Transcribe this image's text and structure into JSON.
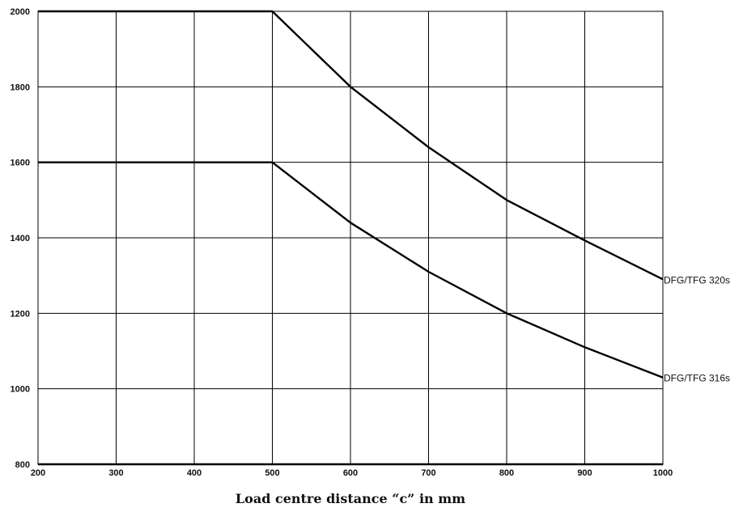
{
  "chart_data": {
    "type": "line",
    "title": "",
    "xlabel": "Load centre distance “c” in mm",
    "ylabel": "",
    "xlim": [
      200,
      1000
    ],
    "ylim": [
      800,
      2000
    ],
    "x_ticks": [
      200,
      300,
      400,
      500,
      600,
      700,
      800,
      900,
      1000
    ],
    "y_ticks": [
      800,
      1000,
      1200,
      1400,
      1600,
      1800,
      2000
    ],
    "x_tick_labels": [
      "200",
      "300",
      "400",
      "500",
      "600",
      "700",
      "800",
      "900",
      "1000"
    ],
    "y_tick_labels": [
      "800",
      "1000",
      "1200",
      "1400",
      "1600",
      "1800",
      "2000"
    ],
    "grid": true,
    "legend": "none; series labelled at line ends",
    "line_color": "#000000",
    "grid_color": "#000000",
    "series": [
      {
        "name": "DFG/TFG 320s",
        "x": [
          200,
          500,
          600,
          700,
          800,
          900,
          1000
        ],
        "values": [
          2000,
          2000,
          1800,
          1640,
          1500,
          1393,
          1290
        ]
      },
      {
        "name": "DFG/TFG 316s",
        "x": [
          200,
          500,
          600,
          700,
          800,
          900,
          1000
        ],
        "values": [
          1600,
          1600,
          1440,
          1310,
          1200,
          1110,
          1030
        ]
      }
    ]
  }
}
